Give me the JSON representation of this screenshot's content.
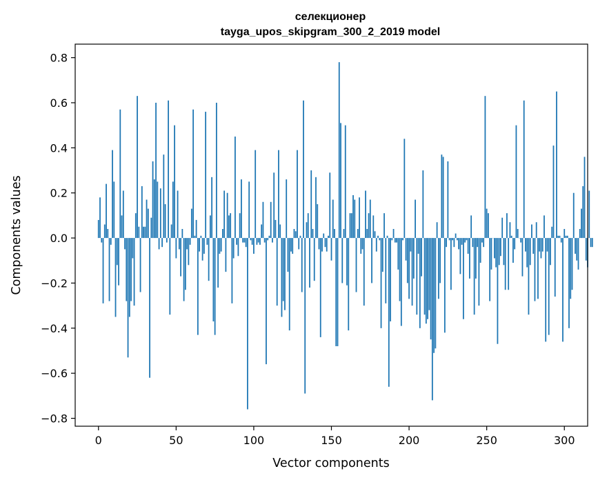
{
  "chart_data": {
    "type": "bar",
    "title_line1": "селекционер",
    "title_line2": "tayga_upos_skipgram_300_2_2019 model",
    "xlabel": "Vector components",
    "ylabel": "Components values",
    "xlim": [
      -15,
      315
    ],
    "ylim": [
      -0.835,
      0.86
    ],
    "xticks": [
      0,
      50,
      100,
      150,
      200,
      250,
      300
    ],
    "xtick_labels": [
      "0",
      "50",
      "100",
      "150",
      "200",
      "250",
      "300"
    ],
    "yticks": [
      -0.8,
      -0.6,
      -0.4,
      -0.2,
      0.0,
      0.2,
      0.4,
      0.6,
      0.8
    ],
    "ytick_labels": [
      "−0.8",
      "−0.6",
      "−0.4",
      "−0.2",
      "0.0",
      "0.2",
      "0.4",
      "0.6",
      "0.8"
    ],
    "bar_color": "#1f77b4",
    "grid": false,
    "values": [
      0.08,
      0.18,
      -0.02,
      -0.29,
      0.06,
      0.24,
      0.04,
      -0.28,
      -0.03,
      0.39,
      0.25,
      -0.35,
      -0.12,
      -0.21,
      0.57,
      0.1,
      0.21,
      -0.05,
      -0.28,
      -0.53,
      -0.35,
      -0.28,
      -0.09,
      -0.3,
      0.11,
      0.63,
      0.05,
      -0.24,
      0.23,
      0.05,
      0.05,
      0.17,
      0.13,
      -0.62,
      0.09,
      0.34,
      0.26,
      0.6,
      0.25,
      -0.05,
      0.22,
      -0.04,
      0.37,
      0.15,
      -0.02,
      0.61,
      -0.34,
      0.06,
      0.25,
      0.5,
      -0.09,
      0.21,
      -0.05,
      -0.17,
      0.04,
      -0.28,
      -0.23,
      -0.05,
      -0.12,
      -0.03,
      0.13,
      0.57,
      0.01,
      0.08,
      -0.43,
      -0.06,
      0.01,
      -0.1,
      -0.07,
      0.56,
      -0.03,
      -0.19,
      0.1,
      0.27,
      -0.37,
      -0.43,
      0.6,
      -0.22,
      -0.07,
      -0.06,
      0.04,
      0.21,
      -0.15,
      0.2,
      0.1,
      0.11,
      -0.29,
      -0.09,
      0.45,
      -0.03,
      -0.08,
      0.11,
      0.26,
      -0.02,
      -0.02,
      -0.04,
      -0.76,
      0.25,
      -0.01,
      -0.03,
      -0.07,
      0.39,
      -0.03,
      -0.02,
      -0.03,
      0.06,
      0.16,
      -0.02,
      -0.56,
      -0.01,
      0.01,
      0.16,
      -0.02,
      0.29,
      0.08,
      -0.3,
      0.39,
      0.06,
      -0.35,
      -0.28,
      -0.32,
      0.26,
      -0.15,
      -0.41,
      -0.06,
      -0.07,
      0.04,
      0.03,
      0.39,
      -0.05,
      0.01,
      -0.24,
      0.61,
      -0.69,
      0.07,
      0.11,
      -0.22,
      0.3,
      0.04,
      -0.19,
      0.27,
      0.15,
      -0.05,
      -0.44,
      -0.06,
      0.02,
      -0.04,
      -0.06,
      0.01,
      0.29,
      -0.1,
      0.17,
      0.04,
      -0.48,
      -0.48,
      0.78,
      0.51,
      -0.2,
      0.04,
      0.5,
      -0.21,
      -0.41,
      0.11,
      0.11,
      0.19,
      0.17,
      -0.24,
      0.04,
      0.18,
      -0.07,
      -0.05,
      -0.3,
      0.21,
      0.04,
      0.11,
      0.17,
      -0.2,
      0.1,
      0.03,
      -0.06,
      0.01,
      -0.01,
      -0.4,
      -0.15,
      0.11,
      -0.29,
      0.01,
      -0.66,
      -0.37,
      -0.01,
      0.04,
      -0.02,
      -0.02,
      -0.14,
      -0.28,
      -0.39,
      -0.01,
      0.44,
      -0.1,
      -0.2,
      -0.27,
      -0.06,
      -0.3,
      -0.18,
      0.17,
      -0.34,
      -0.07,
      -0.4,
      -0.17,
      0.3,
      -0.34,
      -0.38,
      -0.36,
      -0.32,
      -0.45,
      -0.72,
      -0.51,
      -0.49,
      0.07,
      -0.27,
      -0.2,
      0.37,
      0.36,
      -0.42,
      -0.04,
      0.34,
      -0.01,
      -0.23,
      -0.01,
      -0.04,
      0.02,
      -0.01,
      -0.05,
      -0.16,
      -0.03,
      -0.36,
      -0.02,
      -0.01,
      -0.07,
      -0.18,
      0.1,
      -0.04,
      -0.34,
      -0.18,
      -0.04,
      -0.3,
      -0.11,
      -0.02,
      -0.04,
      0.63,
      0.13,
      0.11,
      -0.28,
      -0.14,
      0.0,
      -0.09,
      -0.13,
      -0.47,
      -0.12,
      -0.08,
      0.09,
      -0.12,
      -0.23,
      0.11,
      -0.23,
      0.07,
      0.01,
      -0.11,
      -0.05,
      0.5,
      0.04,
      0.0,
      -0.02,
      -0.17,
      0.61,
      -0.06,
      -0.13,
      -0.34,
      -0.12,
      0.06,
      -0.07,
      -0.28,
      0.07,
      -0.27,
      -0.06,
      -0.09,
      -0.06,
      0.1,
      -0.46,
      -0.06,
      -0.43,
      -0.12,
      0.05,
      0.41,
      -0.26,
      0.65,
      0.01,
      0.01,
      -0.02,
      -0.46,
      0.04,
      0.01,
      0.01,
      -0.4,
      -0.27,
      -0.23,
      0.2,
      -0.07,
      -0.1,
      -0.14,
      0.04,
      0.13,
      0.23,
      0.36,
      -0.1,
      -0.13,
      0.21,
      -0.04,
      -0.04
    ]
  }
}
